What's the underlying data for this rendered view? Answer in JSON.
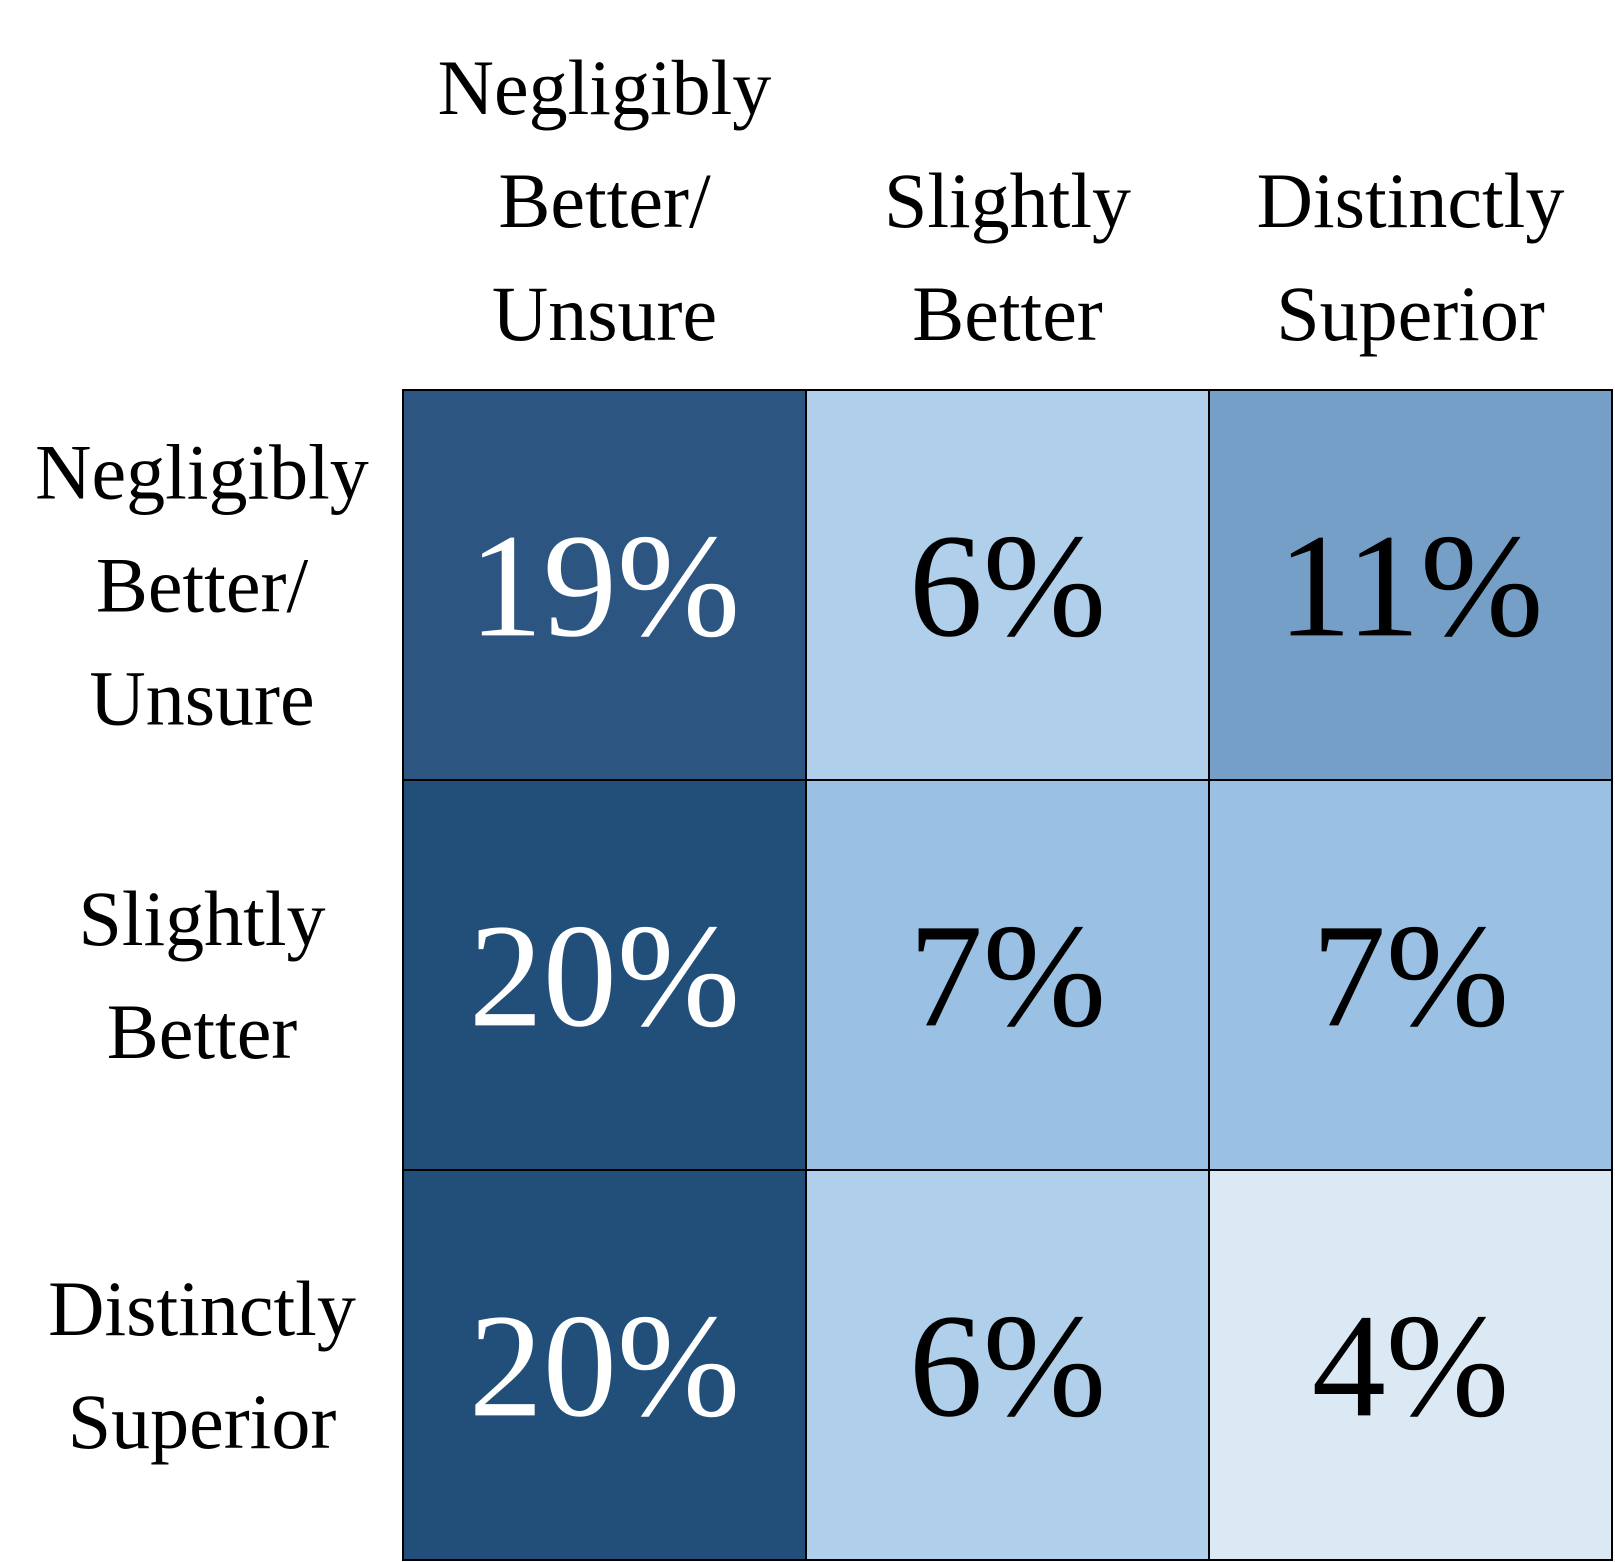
{
  "chart_data": {
    "type": "heatmap",
    "columns": [
      [
        "Negligibly",
        "Better/",
        "Unsure"
      ],
      [
        "Slightly",
        "Better"
      ],
      [
        "Distinctly",
        "Superior"
      ]
    ],
    "rows": [
      [
        "Negligibly",
        "Better/",
        "Unsure"
      ],
      [
        "Slightly",
        "Better"
      ],
      [
        "Distinctly",
        "Superior"
      ]
    ],
    "values": [
      [
        19,
        6,
        11
      ],
      [
        20,
        7,
        7
      ],
      [
        20,
        6,
        4
      ]
    ],
    "value_labels": [
      [
        "19%",
        "6%",
        "11%"
      ],
      [
        "20%",
        "7%",
        "7%"
      ],
      [
        "20%",
        "6%",
        "4%"
      ]
    ],
    "colors": [
      [
        "#2c5681",
        "#b0cfea",
        "#759fc7"
      ],
      [
        "#224f79",
        "#9ac0e4",
        "#9ac0e4"
      ],
      [
        "#224f79",
        "#b0cfea",
        "#dbe9f5"
      ]
    ],
    "text_colors": [
      [
        "#ffffff",
        "#000000",
        "#000000"
      ],
      [
        "#ffffff",
        "#000000",
        "#000000"
      ],
      [
        "#ffffff",
        "#000000",
        "#000000"
      ]
    ],
    "title": "",
    "xlabel": "",
    "ylabel": ""
  }
}
